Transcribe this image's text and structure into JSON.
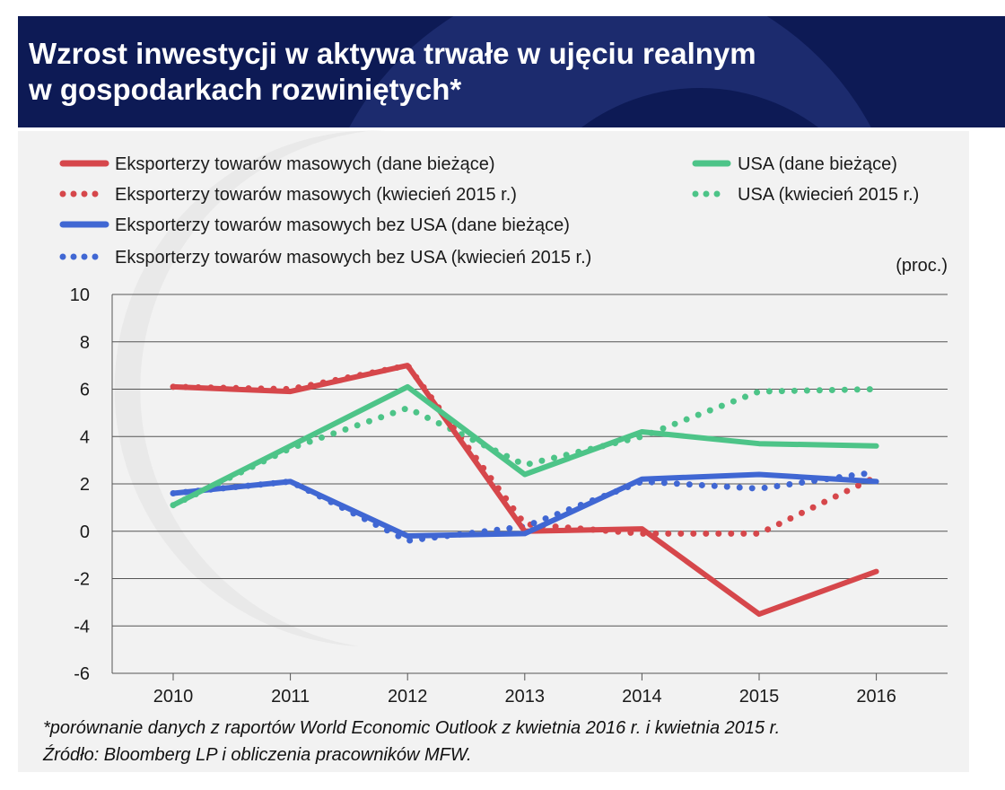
{
  "header": {
    "title_line1": "Wzrost inwestycji w aktywa trwałe w ujęciu realnym",
    "title_line2": "w gospodarkach rozwiniętych*",
    "background_color": "#0d1a55"
  },
  "footnote": {
    "line1": "*porównanie danych z raportów World Economic Outlook z kwietnia 2016 r. i kwietnia 2015 r.",
    "line2": "Źródło: Bloomberg LP i obliczenia pracowników MFW."
  },
  "chart_data": {
    "type": "line",
    "unit_label": "(proc.)",
    "x": [
      "2010",
      "2011",
      "2012",
      "2013",
      "2014",
      "2015",
      "2016"
    ],
    "ylim": [
      -6,
      10
    ],
    "yticks": [
      -6,
      -4,
      -2,
      0,
      2,
      4,
      6,
      8,
      10
    ],
    "grid": "horizontal",
    "legend_position": "top",
    "series": [
      {
        "name": "Eksporterzy towarów masowych (dane bieżące)",
        "color": "#d6474b",
        "style": "solid",
        "values": [
          6.1,
          5.9,
          7.0,
          0.0,
          0.1,
          -3.5,
          -1.7
        ]
      },
      {
        "name": "Eksporterzy towarów masowych (kwiecień 2015 r.)",
        "color": "#d6474b",
        "style": "dotted",
        "values": [
          6.1,
          6.0,
          7.0,
          0.3,
          -0.1,
          -0.1,
          2.3
        ]
      },
      {
        "name": "Eksporterzy towarów masowych bez USA (dane bieżące)",
        "color": "#4067d3",
        "style": "solid",
        "values": [
          1.6,
          2.1,
          -0.2,
          -0.1,
          2.2,
          2.4,
          2.1
        ]
      },
      {
        "name": "Eksporterzy towarów masowych bez USA (kwiecień 2015 r.)",
        "color": "#4067d3",
        "style": "dotted",
        "values": [
          1.6,
          2.1,
          -0.4,
          0.2,
          2.1,
          1.8,
          2.5
        ]
      },
      {
        "name": "USA (dane bieżące)",
        "color": "#4dc488",
        "style": "solid",
        "values": [
          1.1,
          3.6,
          6.1,
          2.4,
          4.2,
          3.7,
          3.6
        ]
      },
      {
        "name": "USA (kwiecień 2015 r.)",
        "color": "#4dc488",
        "style": "dotted",
        "values": [
          1.1,
          3.5,
          5.2,
          2.8,
          4.0,
          5.9,
          6.0
        ]
      }
    ]
  }
}
